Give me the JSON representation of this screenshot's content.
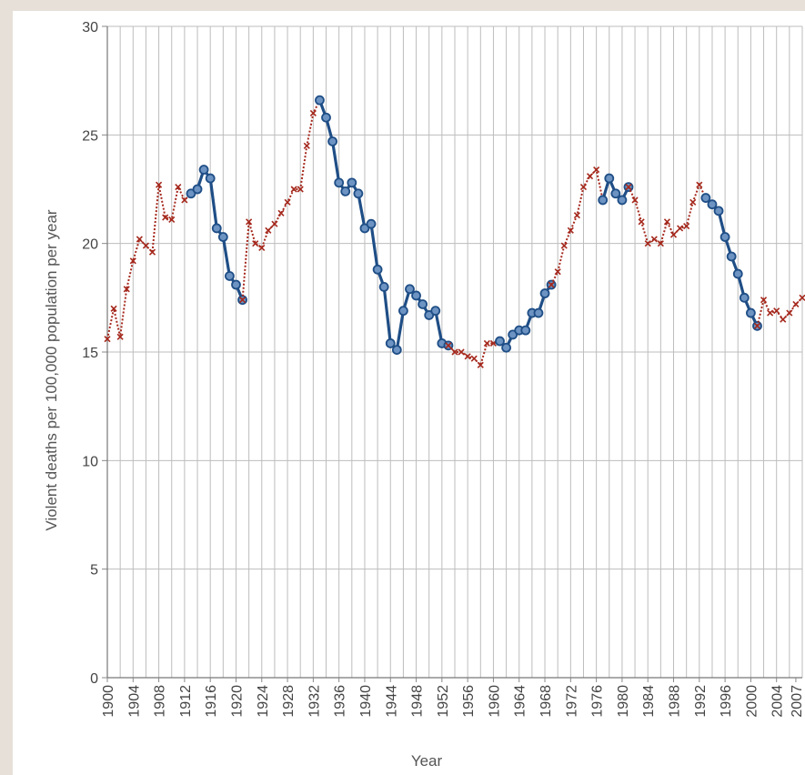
{
  "chart_data": {
    "type": "line",
    "title": "",
    "xlabel": "Year",
    "ylabel": "Violent deaths per 100,000 population per year",
    "xlim": [
      1900,
      2008
    ],
    "ylim": [
      0,
      30
    ],
    "x_ticks": [
      "1900",
      "1904",
      "1908",
      "1912",
      "1916",
      "1920",
      "1924",
      "1928",
      "1932",
      "1936",
      "1940",
      "1944",
      "1948",
      "1952",
      "1956",
      "1960",
      "1964",
      "1968",
      "1972",
      "1976",
      "1980",
      "1984",
      "1988",
      "1992",
      "1996",
      "2000",
      "2004",
      "2007"
    ],
    "y_ticks": [
      0,
      5,
      10,
      15,
      20,
      25,
      30
    ],
    "grid": true,
    "colors": {
      "red_segments": "#a5281c",
      "blue_segments": "#1f4e86",
      "blue_marker_fill": "#6c93c2"
    },
    "segments": [
      {
        "style": "red",
        "points": [
          [
            1900,
            15.6
          ],
          [
            1901,
            17.0
          ],
          [
            1902,
            15.7
          ],
          [
            1903,
            17.9
          ],
          [
            1904,
            19.2
          ],
          [
            1905,
            20.2
          ],
          [
            1906,
            19.9
          ],
          [
            1907,
            19.6
          ],
          [
            1908,
            22.7
          ],
          [
            1909,
            21.2
          ],
          [
            1910,
            21.1
          ],
          [
            1911,
            22.6
          ],
          [
            1912,
            22.0
          ],
          [
            1913,
            22.3
          ]
        ]
      },
      {
        "style": "blue",
        "points": [
          [
            1913,
            22.3
          ],
          [
            1914,
            22.5
          ],
          [
            1915,
            23.4
          ],
          [
            1916,
            23.0
          ],
          [
            1917,
            20.7
          ],
          [
            1918,
            20.3
          ],
          [
            1919,
            18.5
          ],
          [
            1920,
            18.1
          ],
          [
            1921,
            17.4
          ]
        ]
      },
      {
        "style": "red",
        "points": [
          [
            1921,
            17.4
          ],
          [
            1922,
            21.0
          ],
          [
            1923,
            20.0
          ],
          [
            1924,
            19.8
          ],
          [
            1925,
            20.6
          ],
          [
            1926,
            20.9
          ],
          [
            1927,
            21.4
          ],
          [
            1928,
            21.9
          ],
          [
            1929,
            22.5
          ],
          [
            1930,
            22.5
          ],
          [
            1931,
            24.5
          ],
          [
            1932,
            26.0
          ],
          [
            1933,
            26.6
          ]
        ]
      },
      {
        "style": "blue",
        "points": [
          [
            1933,
            26.6
          ],
          [
            1934,
            25.8
          ],
          [
            1935,
            24.7
          ],
          [
            1936,
            22.8
          ],
          [
            1937,
            22.4
          ],
          [
            1938,
            22.8
          ],
          [
            1939,
            22.3
          ],
          [
            1940,
            20.7
          ],
          [
            1941,
            20.9
          ],
          [
            1942,
            18.8
          ],
          [
            1943,
            18.0
          ],
          [
            1944,
            15.4
          ],
          [
            1945,
            15.1
          ],
          [
            1946,
            16.9
          ],
          [
            1947,
            17.9
          ],
          [
            1948,
            17.6
          ],
          [
            1949,
            17.2
          ],
          [
            1950,
            16.7
          ],
          [
            1951,
            16.9
          ],
          [
            1952,
            15.4
          ],
          [
            1953,
            15.3
          ]
        ]
      },
      {
        "style": "red",
        "points": [
          [
            1953,
            15.3
          ],
          [
            1954,
            15.0
          ],
          [
            1955,
            15.0
          ],
          [
            1956,
            14.8
          ],
          [
            1957,
            14.7
          ],
          [
            1958,
            14.4
          ],
          [
            1959,
            15.4
          ],
          [
            1960,
            15.4
          ],
          [
            1961,
            15.5
          ]
        ]
      },
      {
        "style": "blue",
        "points": [
          [
            1961,
            15.5
          ],
          [
            1962,
            15.2
          ],
          [
            1963,
            15.8
          ],
          [
            1964,
            16.0
          ],
          [
            1965,
            16.0
          ],
          [
            1966,
            16.8
          ],
          [
            1967,
            16.8
          ],
          [
            1968,
            17.7
          ],
          [
            1969,
            18.1
          ]
        ]
      },
      {
        "style": "red",
        "points": [
          [
            1969,
            18.1
          ],
          [
            1970,
            18.7
          ],
          [
            1971,
            19.9
          ],
          [
            1972,
            20.6
          ],
          [
            1973,
            21.3
          ],
          [
            1974,
            22.6
          ],
          [
            1975,
            23.1
          ],
          [
            1976,
            23.4
          ],
          [
            1977,
            22.0
          ]
        ]
      },
      {
        "style": "blue",
        "points": [
          [
            1977,
            22.0
          ],
          [
            1978,
            23.0
          ],
          [
            1979,
            22.3
          ],
          [
            1980,
            22.0
          ],
          [
            1981,
            22.6
          ]
        ]
      },
      {
        "style": "red",
        "points": [
          [
            1981,
            22.6
          ],
          [
            1982,
            22.0
          ],
          [
            1983,
            21.0
          ],
          [
            1984,
            20.0
          ],
          [
            1985,
            20.2
          ],
          [
            1986,
            20.0
          ],
          [
            1987,
            21.0
          ],
          [
            1988,
            20.4
          ],
          [
            1989,
            20.7
          ],
          [
            1990,
            20.8
          ],
          [
            1991,
            21.9
          ],
          [
            1992,
            22.7
          ],
          [
            1993,
            22.1
          ]
        ]
      },
      {
        "style": "blue",
        "points": [
          [
            1993,
            22.1
          ],
          [
            1994,
            21.8
          ],
          [
            1995,
            21.5
          ],
          [
            1996,
            20.3
          ],
          [
            1997,
            19.4
          ],
          [
            1998,
            18.6
          ],
          [
            1999,
            17.5
          ],
          [
            2000,
            16.8
          ],
          [
            2001,
            16.2
          ]
        ]
      },
      {
        "style": "red",
        "points": [
          [
            2001,
            16.2
          ],
          [
            2002,
            17.4
          ],
          [
            2003,
            16.8
          ],
          [
            2004,
            16.9
          ],
          [
            2005,
            16.5
          ],
          [
            2006,
            16.8
          ],
          [
            2007,
            17.2
          ],
          [
            2008,
            17.5
          ]
        ]
      }
    ]
  }
}
